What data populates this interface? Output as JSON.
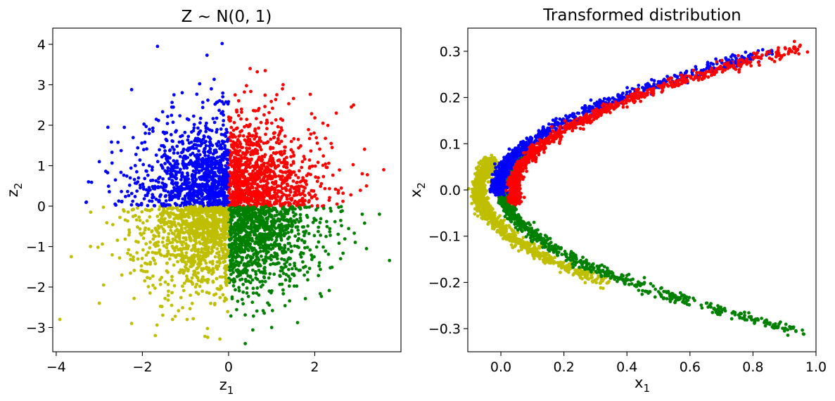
{
  "chart_data": [
    {
      "type": "scatter",
      "title_parts": {
        "lead": "Z",
        "op": "∼",
        "dist": "N(0, 1)"
      },
      "xlabel_parts": {
        "base": "z",
        "sub": "1"
      },
      "ylabel_parts": {
        "base": "z",
        "sub": "2"
      },
      "xlim": [
        -4.08,
        4.0
      ],
      "ylim": [
        -3.6,
        4.4
      ],
      "xticks": [
        -4,
        -2,
        0,
        2
      ],
      "xtick_labels": [
        "−4",
        "−2",
        "0",
        "2"
      ],
      "yticks": [
        -3,
        -2,
        -1,
        0,
        1,
        2,
        3,
        4
      ],
      "ytick_labels": [
        "−3",
        "−2",
        "−1",
        "0",
        "1",
        "2",
        "3",
        "4"
      ],
      "grid": false,
      "legend": false,
      "series": [
        {
          "color": "#0000ff",
          "region": "z1 < 0, z2 > 0"
        },
        {
          "color": "#ff0000",
          "region": "z1 > 0, z2 > 0"
        },
        {
          "color": "#bfbf00",
          "region": "z1 < 0, z2 < 0"
        },
        {
          "color": "#008000",
          "region": "z1 > 0, z2 < 0"
        }
      ],
      "outliers": [
        {
          "x": -1.65,
          "y": 3.95,
          "c": 0
        },
        {
          "x": -0.5,
          "y": 3.73,
          "c": 0
        },
        {
          "x": -0.15,
          "y": 4.02,
          "c": 0
        },
        {
          "x": -3.3,
          "y": 0.1,
          "c": 0
        },
        {
          "x": -3.25,
          "y": 0.6,
          "c": 0
        },
        {
          "x": -2.8,
          "y": 1.95,
          "c": 0
        },
        {
          "x": -2.25,
          "y": 2.88,
          "c": 0
        },
        {
          "x": -0.4,
          "y": 2.9,
          "c": 0
        },
        {
          "x": -3.0,
          "y": 1.1,
          "c": 0
        },
        {
          "x": 0.85,
          "y": 3.35,
          "c": 1
        },
        {
          "x": 0.5,
          "y": 3.4,
          "c": 1
        },
        {
          "x": 1.25,
          "y": 2.9,
          "c": 1
        },
        {
          "x": 2.85,
          "y": 2.45,
          "c": 1
        },
        {
          "x": 2.9,
          "y": 2.5,
          "c": 1
        },
        {
          "x": 3.6,
          "y": 0.9,
          "c": 1
        },
        {
          "x": 3.1,
          "y": 0.8,
          "c": 1
        },
        {
          "x": 3.2,
          "y": 0.5,
          "c": 1
        },
        {
          "x": 2.5,
          "y": 2.3,
          "c": 1
        },
        {
          "x": -3.65,
          "y": -1.25,
          "c": 2
        },
        {
          "x": -3.0,
          "y": -2.4,
          "c": 2
        },
        {
          "x": -2.25,
          "y": -2.9,
          "c": 2
        },
        {
          "x": -1.7,
          "y": -3.2,
          "c": 2
        },
        {
          "x": -0.55,
          "y": -3.22,
          "c": 2
        },
        {
          "x": -3.2,
          "y": -0.15,
          "c": 2
        },
        {
          "x": -2.9,
          "y": -1.95,
          "c": 2
        },
        {
          "x": -1.3,
          "y": -2.8,
          "c": 2
        },
        {
          "x": 1.0,
          "y": -3.0,
          "c": 3
        },
        {
          "x": 3.5,
          "y": -0.2,
          "c": 3
        },
        {
          "x": 3.2,
          "y": -1.05,
          "c": 3
        },
        {
          "x": 3.1,
          "y": -0.2,
          "c": 3
        },
        {
          "x": 1.6,
          "y": -2.88,
          "c": 3
        },
        {
          "x": 2.6,
          "y": -1.3,
          "c": 3
        }
      ]
    },
    {
      "type": "scatter",
      "title": "Transformed distribution",
      "xlabel_parts": {
        "base": "x",
        "sub": "1"
      },
      "ylabel_parts": {
        "base": "x",
        "sub": "2"
      },
      "xlim": [
        -0.105,
        1.0
      ],
      "ylim": [
        -0.35,
        0.35
      ],
      "xticks": [
        0.0,
        0.2,
        0.4,
        0.6,
        0.8,
        1.0
      ],
      "xtick_labels": [
        "0.0",
        "0.2",
        "0.4",
        "0.6",
        "0.8",
        "1.0"
      ],
      "yticks": [
        -0.3,
        -0.2,
        -0.1,
        0.0,
        0.1,
        0.2,
        0.3
      ],
      "ytick_labels": [
        "−0.3",
        "−0.2",
        "−0.1",
        "0.0",
        "0.1",
        "0.2",
        "0.3"
      ],
      "grid": false,
      "legend": false,
      "series": [
        {
          "color": "#0000ff",
          "shape": "upper branch, inner (x2 from 0.0 to 0.3)"
        },
        {
          "color": "#ff0000",
          "shape": "upper branch, outer (x2 from 0.0 to 0.31)"
        },
        {
          "color": "#bfbf00",
          "shape": "vertex and lower branch, inner (x2 from 0.07 to -0.2)"
        },
        {
          "color": "#008000",
          "shape": "lower branch, outer (x2 from 0.1 to -0.3)"
        }
      ],
      "extremes": [
        {
          "x": 0.95,
          "y": 0.313,
          "c": 1
        },
        {
          "x": 0.86,
          "y": 0.3,
          "c": 0
        },
        {
          "x": 0.88,
          "y": 0.302,
          "c": 1
        },
        {
          "x": 0.92,
          "y": -0.3,
          "c": 3
        },
        {
          "x": 0.9,
          "y": -0.305,
          "c": 3
        },
        {
          "x": 0.73,
          "y": 0.275,
          "c": 0
        },
        {
          "x": 0.79,
          "y": 0.275,
          "c": 1
        },
        {
          "x": 0.82,
          "y": 0.27,
          "c": 1
        }
      ]
    }
  ]
}
